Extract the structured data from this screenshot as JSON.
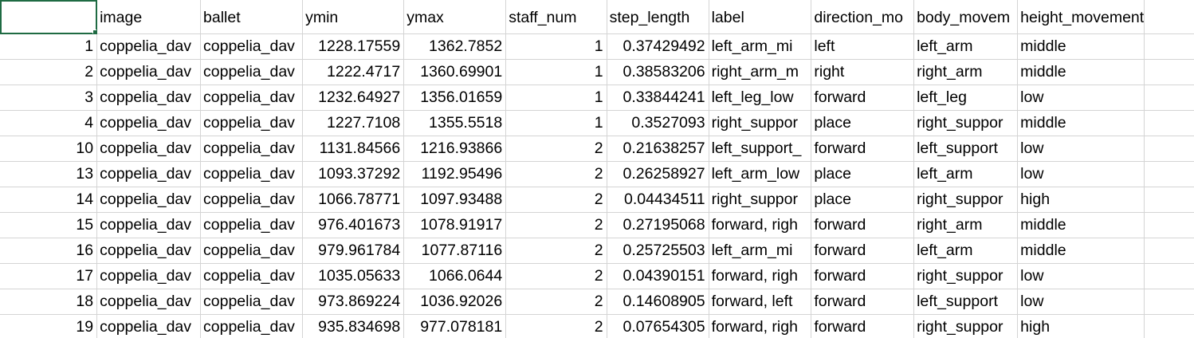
{
  "sheet": {
    "selected_cell": "",
    "columns": [
      {
        "key": "index",
        "header": ""
      },
      {
        "key": "image",
        "header": "image"
      },
      {
        "key": "ballet",
        "header": "ballet"
      },
      {
        "key": "ymin",
        "header": "ymin"
      },
      {
        "key": "ymax",
        "header": "ymax"
      },
      {
        "key": "staff_num",
        "header": "staff_num"
      },
      {
        "key": "step_length",
        "header": "step_length"
      },
      {
        "key": "label",
        "header": "label"
      },
      {
        "key": "direction",
        "header": "direction_mo"
      },
      {
        "key": "body_movement",
        "header": "body_movem"
      },
      {
        "key": "height_movement",
        "header": "height_movement"
      },
      {
        "key": "extra",
        "header": ""
      }
    ],
    "rows": [
      [
        "1",
        "coppelia_dav",
        "coppelia_dav",
        "1228.17559",
        "1362.7852",
        "1",
        "0.37429492",
        "left_arm_mi",
        "left",
        "left_arm",
        "middle",
        ""
      ],
      [
        "2",
        "coppelia_dav",
        "coppelia_dav",
        "1222.4717",
        "1360.69901",
        "1",
        "0.38583206",
        "right_arm_m",
        "right",
        "right_arm",
        "middle",
        ""
      ],
      [
        "3",
        "coppelia_dav",
        "coppelia_dav",
        "1232.64927",
        "1356.01659",
        "1",
        "0.33844241",
        "left_leg_low",
        "forward",
        "left_leg",
        "low",
        ""
      ],
      [
        "4",
        "coppelia_dav",
        "coppelia_dav",
        "1227.7108",
        "1355.5518",
        "1",
        "0.3527093",
        "right_suppor",
        "place",
        "right_suppor",
        "middle",
        ""
      ],
      [
        "10",
        "coppelia_dav",
        "coppelia_dav",
        "1131.84566",
        "1216.93866",
        "2",
        "0.21638257",
        "left_support_",
        "forward",
        "left_support",
        "low",
        ""
      ],
      [
        "13",
        "coppelia_dav",
        "coppelia_dav",
        "1093.37292",
        "1192.95496",
        "2",
        "0.26258927",
        "left_arm_low",
        "place",
        "left_arm",
        "low",
        ""
      ],
      [
        "14",
        "coppelia_dav",
        "coppelia_dav",
        "1066.78771",
        "1097.93488",
        "2",
        "0.04434511",
        "right_suppor",
        "place",
        "right_suppor",
        "high",
        ""
      ],
      [
        "15",
        "coppelia_dav",
        "coppelia_dav",
        "976.401673",
        "1078.91917",
        "2",
        "0.27195068",
        "forward, righ",
        "forward",
        "right_arm",
        "middle",
        ""
      ],
      [
        "16",
        "coppelia_dav",
        "coppelia_dav",
        "979.961784",
        "1077.87116",
        "2",
        "0.25725503",
        "left_arm_mi",
        "forward",
        "left_arm",
        "middle",
        ""
      ],
      [
        "17",
        "coppelia_dav",
        "coppelia_dav",
        "1035.05633",
        "1066.0644",
        "2",
        "0.04390151",
        "forward, righ",
        "forward",
        "right_suppor",
        "low",
        ""
      ],
      [
        "18",
        "coppelia_dav",
        "coppelia_dav",
        "973.869224",
        "1036.92026",
        "2",
        "0.14608905",
        "forward, left",
        "forward",
        "left_support",
        "low",
        ""
      ],
      [
        "19",
        "coppelia_dav",
        "coppelia_dav",
        "935.834698",
        "977.078181",
        "2",
        "0.07654305",
        "forward, righ",
        "forward",
        "right_suppor",
        "high",
        ""
      ]
    ]
  }
}
